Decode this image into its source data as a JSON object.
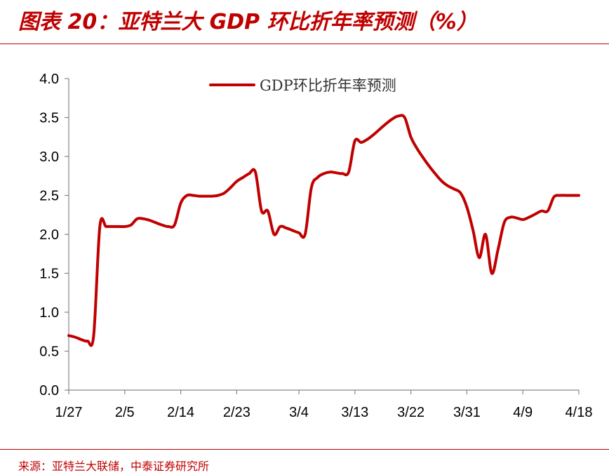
{
  "figure": {
    "title": "图表 20：亚特兰大 GDP 环比折年率预测（%）",
    "source": "来源：亚特兰大联储，中泰证券研究所",
    "accent_color": "#c00000"
  },
  "chart_data": {
    "type": "line",
    "title": "",
    "xlabel": "",
    "ylabel": "",
    "ylim": [
      0,
      4
    ],
    "yticks": [
      "0.0",
      "0.5",
      "1.0",
      "1.5",
      "2.0",
      "2.5",
      "3.0",
      "3.5",
      "4.0"
    ],
    "xticks": [
      "1/27",
      "2/5",
      "2/14",
      "2/23",
      "3/4",
      "3/13",
      "3/22",
      "3/31",
      "4/9",
      "4/18"
    ],
    "grid": false,
    "legend": "top-center",
    "series": [
      {
        "name": "GDP环比折年率预测",
        "color": "#c00000",
        "x": [
          "1/27",
          "1/28",
          "1/29",
          "1/30",
          "1/31",
          "2/1",
          "2/2",
          "2/3",
          "2/4",
          "2/5",
          "2/6",
          "2/7",
          "2/8",
          "2/9",
          "2/10",
          "2/11",
          "2/12",
          "2/13",
          "2/14",
          "2/15",
          "2/16",
          "2/17",
          "2/18",
          "2/19",
          "2/20",
          "2/21",
          "2/22",
          "2/23",
          "2/24",
          "2/25",
          "2/26",
          "2/27",
          "2/28",
          "2/29",
          "3/1",
          "3/2",
          "3/3",
          "3/4",
          "3/5",
          "3/6",
          "3/7",
          "3/8",
          "3/9",
          "3/10",
          "3/11",
          "3/12",
          "3/13",
          "3/14",
          "3/15",
          "3/16",
          "3/17",
          "3/18",
          "3/19",
          "3/20",
          "3/21",
          "3/22",
          "3/23",
          "3/24",
          "3/25",
          "3/26",
          "3/27",
          "3/28",
          "3/29",
          "3/30",
          "3/31",
          "4/1",
          "4/2",
          "4/3",
          "4/4",
          "4/5",
          "4/6",
          "4/7",
          "4/8",
          "4/9",
          "4/10",
          "4/11",
          "4/12",
          "4/13",
          "4/14",
          "4/15",
          "4/16",
          "4/17",
          "4/18"
        ],
        "values": [
          0.7,
          0.68,
          0.65,
          0.63,
          0.7,
          2.1,
          2.1,
          2.1,
          2.1,
          2.1,
          2.12,
          2.2,
          2.2,
          2.18,
          2.15,
          2.12,
          2.1,
          2.12,
          2.4,
          2.5,
          2.5,
          2.49,
          2.49,
          2.49,
          2.5,
          2.53,
          2.6,
          2.68,
          2.73,
          2.78,
          2.8,
          2.3,
          2.3,
          2.0,
          2.1,
          2.08,
          2.05,
          2.02,
          2.0,
          2.6,
          2.73,
          2.78,
          2.8,
          2.79,
          2.78,
          2.8,
          3.2,
          3.18,
          3.22,
          3.28,
          3.35,
          3.42,
          3.48,
          3.52,
          3.5,
          3.25,
          3.1,
          2.98,
          2.87,
          2.77,
          2.68,
          2.62,
          2.58,
          2.53,
          2.35,
          2.05,
          1.7,
          2.0,
          1.5,
          1.8,
          2.15,
          2.22,
          2.21,
          2.19,
          2.22,
          2.26,
          2.3,
          2.3,
          2.48,
          2.5,
          2.5,
          2.5,
          2.5
        ]
      }
    ]
  }
}
